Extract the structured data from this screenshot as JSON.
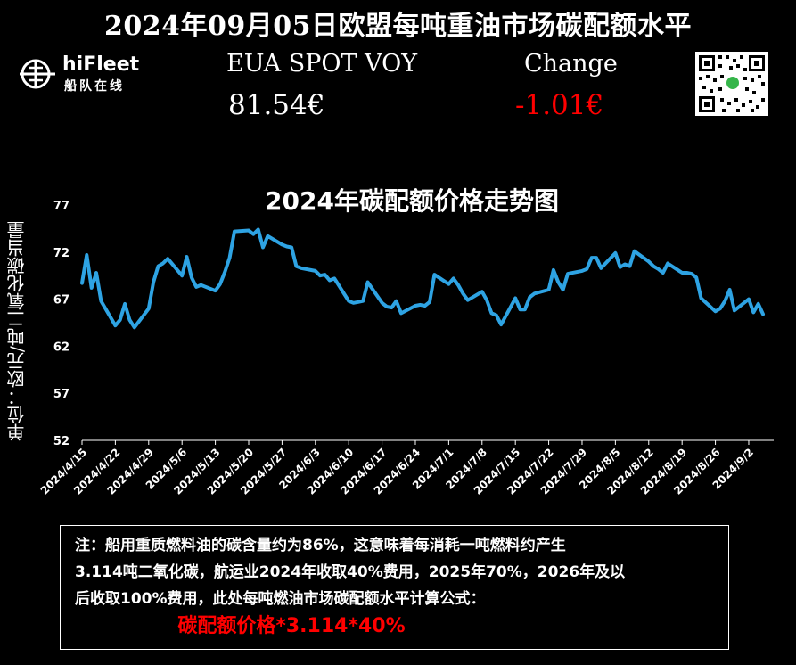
{
  "header": {
    "title": "2024年09月05日欧盟每吨重油市场碳配额水平"
  },
  "brand": {
    "name": "hiFleet",
    "subtitle": "船队在线"
  },
  "ticker": {
    "label": "EUA SPOT VOY",
    "value": "81.54€",
    "change_label": "Change",
    "change_value": "-1.01€",
    "change_color": "#ff0000"
  },
  "colors": {
    "background": "#000000",
    "line": "#2ea3e3",
    "text": "#ffffff",
    "accent_red": "#ff0000"
  },
  "chart_data": {
    "type": "line",
    "title": "2024年碳配额价格走势图",
    "xlabel": "",
    "ylabel": "单位：欧元/吨二氧化碳当量",
    "ylim": [
      52,
      77
    ],
    "yticks": [
      52,
      57,
      62,
      67,
      72,
      77
    ],
    "xticks": [
      "2024/4/15",
      "2024/4/22",
      "2024/4/29",
      "2024/5/6",
      "2024/5/13",
      "2024/5/20",
      "2024/5/27",
      "2024/6/3",
      "2024/6/10",
      "2024/6/17",
      "2024/6/24",
      "2024/7/1",
      "2024/7/8",
      "2024/7/15",
      "2024/7/22",
      "2024/7/29",
      "2024/8/5",
      "2024/8/12",
      "2024/8/19",
      "2024/8/26",
      "2024/9/2"
    ],
    "grid": false,
    "legend": "none",
    "series": [
      {
        "name": "",
        "x": [
          "2024/4/15",
          "2024/4/16",
          "2024/4/17",
          "2024/4/18",
          "2024/4/19",
          "2024/4/22",
          "2024/4/23",
          "2024/4/24",
          "2024/4/25",
          "2024/4/26",
          "2024/4/29",
          "2024/4/30",
          "2024/5/1",
          "2024/5/2",
          "2024/5/3",
          "2024/5/6",
          "2024/5/7",
          "2024/5/8",
          "2024/5/9",
          "2024/5/10",
          "2024/5/13",
          "2024/5/14",
          "2024/5/15",
          "2024/5/16",
          "2024/5/17",
          "2024/5/20",
          "2024/5/21",
          "2024/5/22",
          "2024/5/23",
          "2024/5/24",
          "2024/5/27",
          "2024/5/28",
          "2024/5/29",
          "2024/5/30",
          "2024/5/31",
          "2024/6/3",
          "2024/6/4",
          "2024/6/5",
          "2024/6/6",
          "2024/6/7",
          "2024/6/10",
          "2024/6/11",
          "2024/6/12",
          "2024/6/13",
          "2024/6/14",
          "2024/6/17",
          "2024/6/18",
          "2024/6/19",
          "2024/6/20",
          "2024/6/21",
          "2024/6/24",
          "2024/6/25",
          "2024/6/26",
          "2024/6/27",
          "2024/6/28",
          "2024/7/1",
          "2024/7/2",
          "2024/7/3",
          "2024/7/4",
          "2024/7/5",
          "2024/7/8",
          "2024/7/9",
          "2024/7/10",
          "2024/7/11",
          "2024/7/12",
          "2024/7/15",
          "2024/7/16",
          "2024/7/17",
          "2024/7/18",
          "2024/7/19",
          "2024/7/22",
          "2024/7/23",
          "2024/7/24",
          "2024/7/25",
          "2024/7/26",
          "2024/7/29",
          "2024/7/30",
          "2024/7/31",
          "2024/8/1",
          "2024/8/2",
          "2024/8/5",
          "2024/8/6",
          "2024/8/7",
          "2024/8/8",
          "2024/8/9",
          "2024/8/12",
          "2024/8/13",
          "2024/8/14",
          "2024/8/15",
          "2024/8/16",
          "2024/8/19",
          "2024/8/20",
          "2024/8/21",
          "2024/8/22",
          "2024/8/23",
          "2024/8/26",
          "2024/8/27",
          "2024/8/28",
          "2024/8/29",
          "2024/8/30",
          "2024/9/2",
          "2024/9/3",
          "2024/9/4",
          "2024/9/5"
        ],
        "values": [
          68.7,
          71.7,
          68.2,
          69.8,
          66.8,
          64.2,
          64.8,
          66.5,
          64.8,
          64.0,
          66.0,
          68.8,
          70.5,
          70.8,
          71.3,
          69.5,
          71.5,
          69.3,
          68.3,
          68.5,
          67.9,
          68.6,
          69.9,
          71.4,
          74.2,
          74.3,
          73.9,
          74.4,
          72.5,
          73.7,
          72.8,
          72.6,
          72.5,
          70.5,
          70.3,
          70.0,
          69.5,
          69.6,
          69.0,
          69.2,
          66.8,
          66.6,
          66.7,
          66.8,
          68.8,
          66.6,
          66.2,
          66.1,
          66.8,
          65.5,
          66.3,
          66.4,
          66.3,
          66.7,
          69.6,
          68.6,
          69.2,
          68.5,
          67.6,
          66.9,
          67.8,
          66.9,
          65.5,
          65.3,
          64.3,
          67.1,
          65.9,
          65.9,
          67.2,
          67.6,
          68.0,
          70.1,
          68.8,
          68.0,
          69.7,
          70.0,
          70.2,
          71.4,
          71.4,
          70.3,
          71.9,
          70.4,
          70.7,
          70.5,
          72.1,
          71.0,
          70.5,
          70.2,
          69.8,
          70.8,
          69.8,
          69.8,
          69.7,
          69.3,
          67.1,
          65.7,
          66.0,
          66.8,
          68.0,
          65.8,
          67.0,
          65.6,
          66.5,
          65.4
        ]
      }
    ]
  },
  "note": {
    "lines": [
      "注：船用重质燃料油的碳含量约为86%，这意味着每消耗一吨燃料约产生",
      "3.114吨二氧化碳，航运业2024年收取40%费用，2025年70%，2026年及以",
      "后收取100%费用，此处每吨燃油市场碳配额水平计算公式："
    ],
    "formula": "碳配额价格*3.114*40%"
  }
}
